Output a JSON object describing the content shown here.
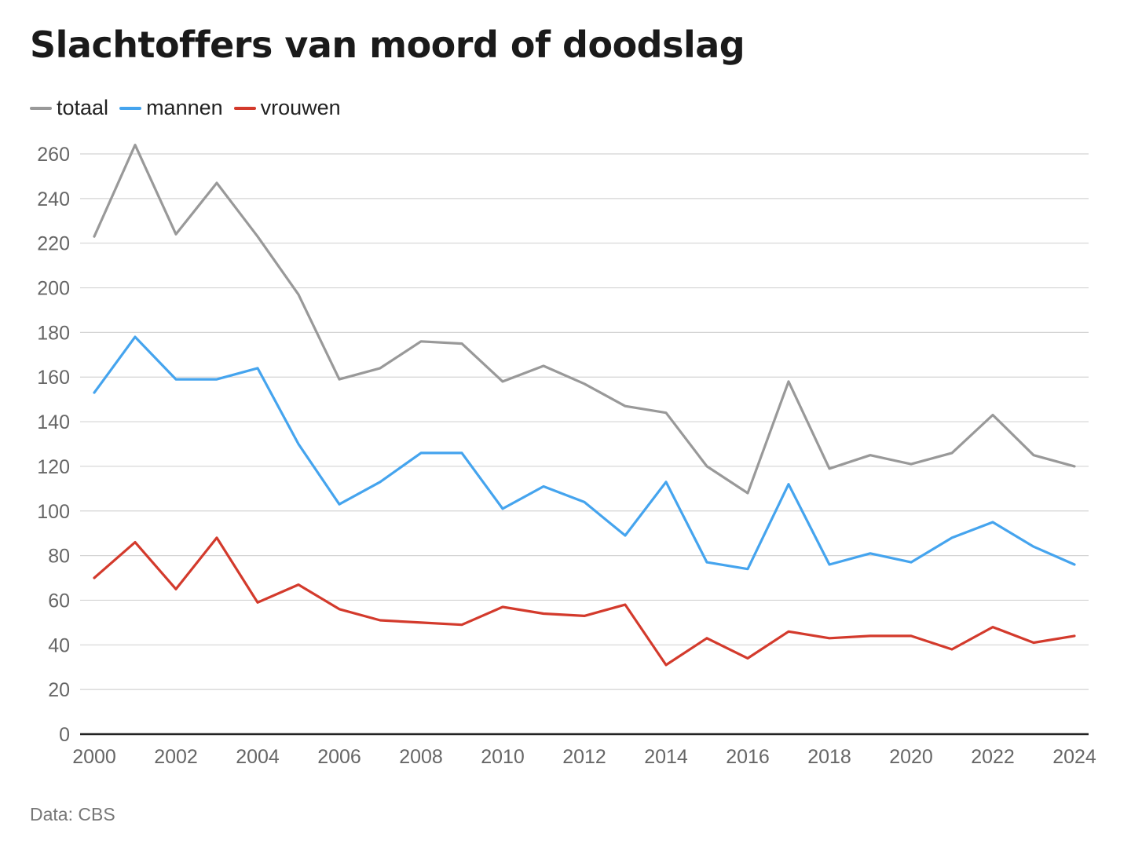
{
  "title": "Slachtoffers van moord of doodslag",
  "source": "Data: CBS",
  "legend": [
    {
      "name": "totaal",
      "color": "#999999"
    },
    {
      "name": "mannen",
      "color": "#45a4ee"
    },
    {
      "name": "vrouwen",
      "color": "#d33a2c"
    }
  ],
  "chart_data": {
    "type": "line",
    "title": "Slachtoffers van moord of doodslag",
    "xlabel": "",
    "ylabel": "",
    "ylim": [
      0,
      260
    ],
    "yticks": [
      0,
      20,
      40,
      60,
      80,
      100,
      120,
      140,
      160,
      180,
      200,
      220,
      240,
      260
    ],
    "xticks": [
      2000,
      2002,
      2004,
      2006,
      2008,
      2010,
      2012,
      2014,
      2016,
      2018,
      2020,
      2022,
      2024
    ],
    "grid": true,
    "legend_position": "top-left",
    "x": [
      2000,
      2001,
      2002,
      2003,
      2004,
      2005,
      2006,
      2007,
      2008,
      2009,
      2010,
      2011,
      2012,
      2013,
      2014,
      2015,
      2016,
      2017,
      2018,
      2019,
      2020,
      2021,
      2022,
      2023,
      2024
    ],
    "series": [
      {
        "name": "totaal",
        "color": "#999999",
        "values": [
          223,
          264,
          224,
          247,
          223,
          197,
          159,
          164,
          176,
          175,
          158,
          165,
          157,
          147,
          144,
          120,
          108,
          158,
          119,
          125,
          121,
          126,
          143,
          125,
          120
        ]
      },
      {
        "name": "mannen",
        "color": "#45a4ee",
        "values": [
          153,
          178,
          159,
          159,
          164,
          130,
          103,
          113,
          126,
          126,
          101,
          111,
          104,
          89,
          113,
          77,
          74,
          112,
          76,
          81,
          77,
          88,
          95,
          84,
          76
        ]
      },
      {
        "name": "vrouwen",
        "color": "#d33a2c",
        "values": [
          70,
          86,
          65,
          88,
          59,
          67,
          56,
          51,
          50,
          49,
          57,
          54,
          53,
          58,
          31,
          43,
          34,
          46,
          43,
          44,
          44,
          38,
          48,
          41,
          44
        ]
      }
    ]
  }
}
